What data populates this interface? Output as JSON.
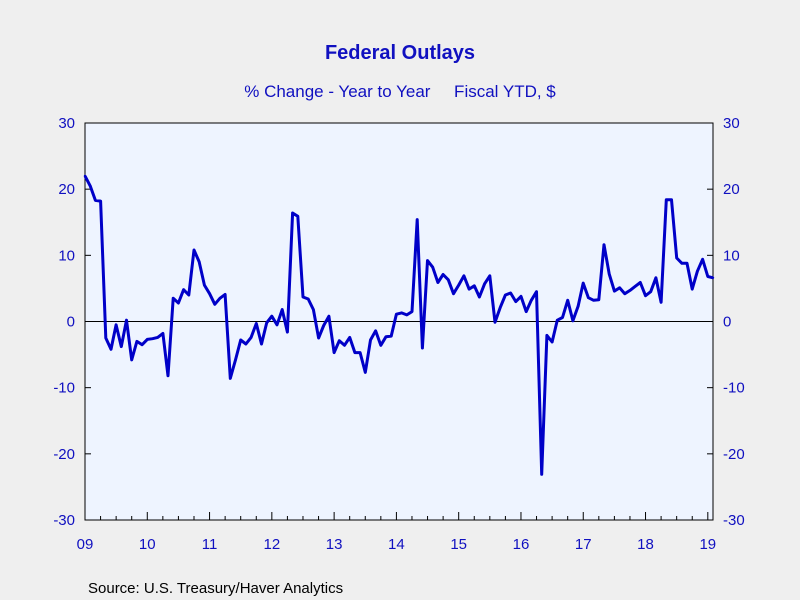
{
  "chart_data": {
    "type": "line",
    "title": "Federal Outlays",
    "subtitle": "% Change - Year to Year     Fiscal YTD, $",
    "source": "Source:  U.S. Treasury/Haver Analytics",
    "x_tick_labels": [
      "09",
      "10",
      "11",
      "12",
      "13",
      "14",
      "15",
      "16",
      "17",
      "18",
      "19"
    ],
    "x_tick_years": [
      2009,
      2010,
      2011,
      2012,
      2013,
      2014,
      2015,
      2016,
      2017,
      2018,
      2019
    ],
    "y_tick_labels": [
      "30",
      "20",
      "10",
      "0",
      "-10",
      "-20",
      "-30"
    ],
    "ylim": [
      -30,
      30
    ],
    "x_range": [
      "2009-01",
      "2019-02"
    ],
    "grid": false,
    "zero_line": true,
    "colors": {
      "series": "#0000c8",
      "plot_bg": "#eef4ff",
      "text": "#1010c0",
      "page_bg": "#efefef"
    },
    "series": [
      {
        "x": [
          "2009-01",
          "2009-02",
          "2009-03",
          "2009-04",
          "2009-05",
          "2009-06",
          "2009-07",
          "2009-08",
          "2009-09",
          "2009-10",
          "2009-11",
          "2009-12",
          "2010-01",
          "2010-02",
          "2010-03",
          "2010-04",
          "2010-05",
          "2010-06",
          "2010-07",
          "2010-08",
          "2010-09",
          "2010-10",
          "2010-11",
          "2010-12",
          "2011-01",
          "2011-02",
          "2011-03",
          "2011-04",
          "2011-05",
          "2011-06",
          "2011-07",
          "2011-08",
          "2011-09",
          "2011-10",
          "2011-11",
          "2011-12",
          "2012-01",
          "2012-02",
          "2012-03",
          "2012-04",
          "2012-05",
          "2012-06",
          "2012-07",
          "2012-08",
          "2012-09",
          "2012-10",
          "2012-11",
          "2012-12",
          "2013-01",
          "2013-02",
          "2013-03",
          "2013-04",
          "2013-05",
          "2013-06",
          "2013-07",
          "2013-08",
          "2013-09",
          "2013-10",
          "2013-11",
          "2013-12",
          "2014-01",
          "2014-02",
          "2014-03",
          "2014-04",
          "2014-05",
          "2014-06",
          "2014-07",
          "2014-08",
          "2014-09",
          "2014-10",
          "2014-11",
          "2014-12",
          "2015-01",
          "2015-02",
          "2015-03",
          "2015-04",
          "2015-05",
          "2015-06",
          "2015-07",
          "2015-08",
          "2015-09",
          "2015-10",
          "2015-11",
          "2015-12",
          "2016-01",
          "2016-02",
          "2016-03",
          "2016-04",
          "2016-05",
          "2016-06",
          "2016-07",
          "2016-08",
          "2016-09",
          "2016-10",
          "2016-11",
          "2016-12",
          "2017-01",
          "2017-02",
          "2017-03",
          "2017-04",
          "2017-05",
          "2017-06",
          "2017-07",
          "2017-08",
          "2017-09",
          "2017-10",
          "2017-11",
          "2017-12",
          "2018-01",
          "2018-02",
          "2018-03",
          "2018-04",
          "2018-05",
          "2018-06",
          "2018-07",
          "2018-08",
          "2018-09",
          "2018-10",
          "2018-11",
          "2018-12",
          "2019-01",
          "2019-02"
        ],
        "values": [
          22.0,
          20.5,
          18.3,
          18.2,
          -2.5,
          -4.2,
          -0.5,
          -3.8,
          0.2,
          -5.8,
          -3.0,
          -3.5,
          -2.7,
          -2.6,
          -2.4,
          -1.8,
          -8.2,
          3.5,
          2.8,
          4.8,
          4.0,
          10.8,
          9.0,
          5.5,
          4.2,
          2.6,
          3.5,
          4.1,
          -8.6,
          -5.8,
          -2.8,
          -3.4,
          -2.4,
          -0.3,
          -3.4,
          -0.2,
          0.8,
          -0.5,
          1.8,
          -1.6,
          16.4,
          15.9,
          3.7,
          3.4,
          1.8,
          -2.5,
          -0.6,
          0.8,
          -4.7,
          -2.9,
          -3.6,
          -2.4,
          -4.7,
          -4.7,
          -7.7,
          -2.8,
          -1.4,
          -3.6,
          -2.3,
          -2.2,
          1.1,
          1.3,
          1.0,
          1.5,
          15.4,
          -4.0,
          9.2,
          8.2,
          5.9,
          7.1,
          6.3,
          4.2,
          5.5,
          6.9,
          4.9,
          5.4,
          3.7,
          5.7,
          6.9,
          -0.1,
          2.1,
          4.0,
          4.3,
          3.0,
          3.8,
          1.5,
          3.2,
          4.5,
          -23.1,
          -2.1,
          -3.1,
          0.2,
          0.6,
          3.2,
          0.1,
          2.3,
          5.8,
          3.6,
          3.2,
          3.3,
          11.6,
          7.2,
          4.6,
          5.1,
          4.2,
          4.7,
          5.3,
          5.9,
          3.9,
          4.5,
          6.6,
          2.9,
          18.4,
          18.4,
          9.6,
          8.8,
          8.8,
          4.9,
          7.6,
          9.4,
          6.8,
          6.6
        ]
      }
    ]
  }
}
